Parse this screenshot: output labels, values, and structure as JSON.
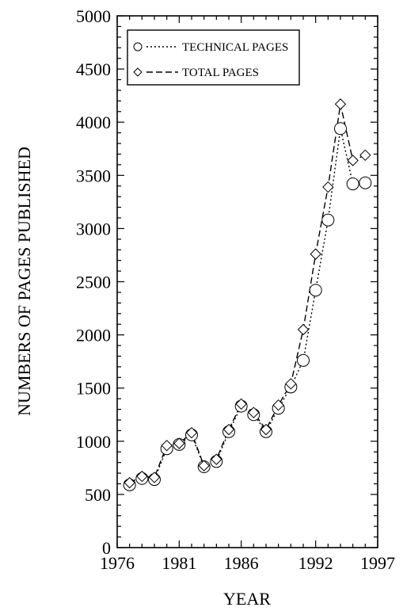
{
  "chart_data": {
    "type": "line",
    "xlabel": "YEAR",
    "ylabel": "NUMBERS OF PAGES PUBLISHED",
    "xlim": [
      1976,
      1997
    ],
    "ylim": [
      0,
      5000
    ],
    "x_ticks": [
      "1976",
      "1981",
      "1986",
      "1992",
      "1997"
    ],
    "y_ticks": [
      "0",
      "500",
      "1000",
      "1500",
      "2000",
      "2500",
      "3000",
      "3500",
      "4000",
      "4500",
      "5000"
    ],
    "legend_position": "top-left",
    "grid": false,
    "x": [
      1977,
      1978,
      1979,
      1980,
      1981,
      1982,
      1983,
      1984,
      1985,
      1986,
      1987,
      1988,
      1989,
      1990,
      1991,
      1992,
      1993,
      1994,
      1995,
      1996
    ],
    "series": [
      {
        "name": "TECHNICAL PAGES",
        "marker": "circle",
        "line": "dotted",
        "values": [
          590,
          650,
          640,
          930,
          970,
          1060,
          760,
          810,
          1090,
          1330,
          1250,
          1090,
          1310,
          1510,
          1760,
          2420,
          3080,
          3940,
          3420,
          3430
        ]
      },
      {
        "name": "TOTAL PAGES",
        "marker": "diamond",
        "line": "dashed",
        "values": [
          610,
          670,
          660,
          960,
          980,
          1080,
          770,
          830,
          1110,
          1350,
          1270,
          1110,
          1340,
          1540,
          2050,
          2760,
          3390,
          4170,
          3640,
          3690
        ]
      }
    ]
  }
}
